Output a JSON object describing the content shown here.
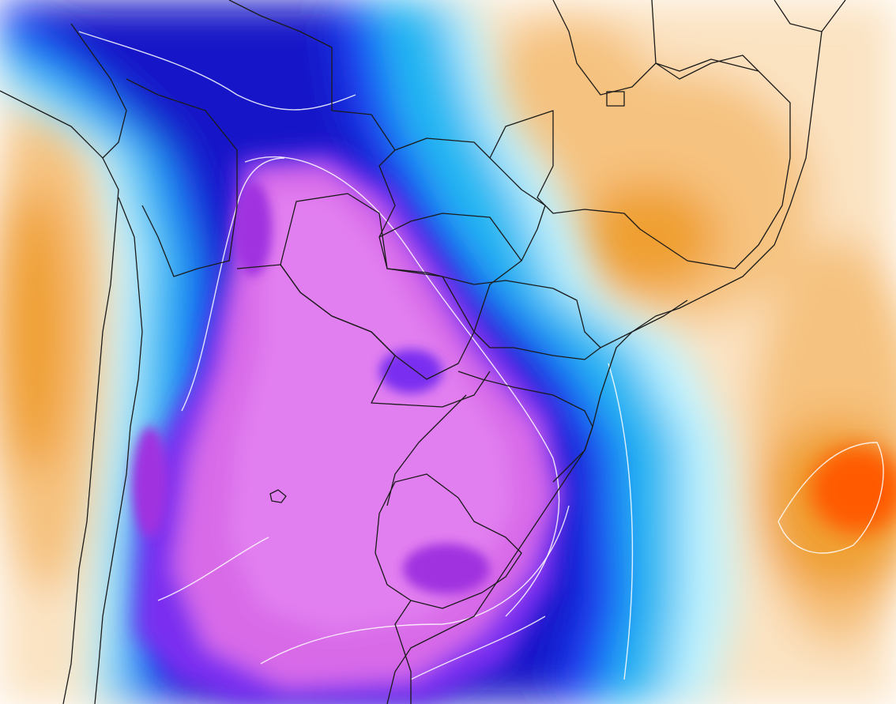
{
  "map": {
    "colors": {
      "background": "#ffffff",
      "warm_light": "#fbe3c2",
      "warm_mid": "#f6c27f",
      "warm_strong": "#f0a032",
      "warm_hot": "#ff5a00",
      "cold_pale": "#bff3ff",
      "cold_cyan": "#22b8f2",
      "cold_blue": "#1d3cf5",
      "cold_deep": "#1416c8",
      "cold_violet": "#7a2ff0",
      "cold_magenta": "#d86ae8",
      "cold_orchid": "#e27ff0",
      "cold_purple_core": "#a033e0",
      "border_line": "#1a1a1a",
      "contour_line": "#ffffff"
    }
  }
}
